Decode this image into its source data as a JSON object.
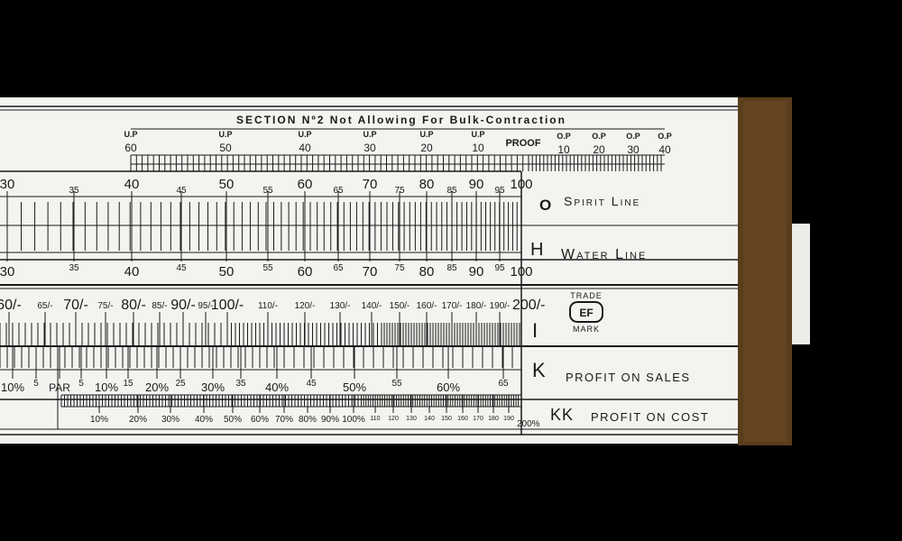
{
  "colors": {
    "background": "#000000",
    "rule_face": "#f3f3f0",
    "ink": "#1a1a1a",
    "brass_cap": "#5a3d1c",
    "cursor_tab": "#ecece8"
  },
  "header": {
    "title": "SECTION Nº2  Not Allowing For Bulk-Contraction"
  },
  "proof_scale": {
    "under_proof_label": "U.P",
    "over_proof_label": "O.P",
    "proof_label": "PROOF",
    "under_values": [
      "60",
      "50",
      "40",
      "30",
      "20",
      "10"
    ],
    "over_values": [
      "10",
      "20",
      "30",
      "40"
    ]
  },
  "o_h_scale": {
    "top_labels": [
      "30",
      "35",
      "40",
      "45",
      "50",
      "55",
      "60",
      "65",
      "70",
      "75",
      "80",
      "85",
      "90",
      "95",
      "100"
    ],
    "bottom_labels": [
      "30",
      "35",
      "40",
      "45",
      "50",
      "55",
      "60",
      "65",
      "70",
      "75",
      "80",
      "85",
      "90",
      "95",
      "100"
    ],
    "o_letter": "O",
    "o_name": "Spirit Line",
    "h_letter": "H",
    "h_name": "Water Line"
  },
  "i_scale": {
    "labels": [
      "60/-",
      "65/-",
      "70/-",
      "75/-",
      "80/-",
      "85/-",
      "90/-",
      "95/-",
      "100/-",
      "110/-",
      "120/-",
      "130/-",
      "140/-",
      "150/-",
      "160/-",
      "170/-",
      "180/-",
      "190/-",
      "200/-"
    ],
    "letter": "I"
  },
  "trademark": {
    "top": "TRADE",
    "bottom": "MARK",
    "logo_letters": "EF"
  },
  "k_scale": {
    "labels": [
      "10%",
      "5",
      "PAR",
      "5",
      "10%",
      "15",
      "20%",
      "25",
      "30%",
      "35",
      "40%",
      "45",
      "50%",
      "55",
      "60%",
      "65"
    ],
    "letter": "K",
    "name": "PROFIT ON SALES"
  },
  "kk_scale": {
    "labels": [
      "10%",
      "20%",
      "30%",
      "40%",
      "50%",
      "60%",
      "70%",
      "80%",
      "90%",
      "100%",
      "110",
      "120",
      "130",
      "140",
      "150",
      "160",
      "170",
      "180",
      "190",
      "200%"
    ],
    "letter": "KK",
    "name": "PROFIT ON COST"
  }
}
